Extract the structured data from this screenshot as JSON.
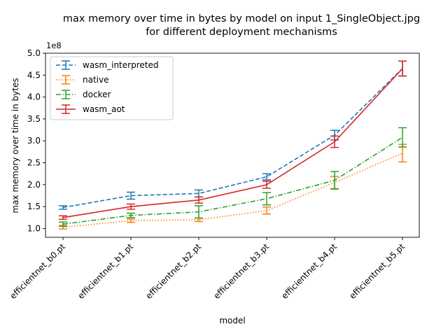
{
  "chart_data": {
    "type": "line",
    "title_line1": "max memory over time in bytes by model on input 1_SingleObject.jpg",
    "title_line2": "for different deployment mechanisms",
    "xlabel": "model",
    "ylabel": "max memory over time in bytes",
    "y_offset_label": "1e8",
    "y_scale": 100000000,
    "ylim": [
      0.8,
      5.0
    ],
    "yticks": [
      1.0,
      1.5,
      2.0,
      2.5,
      3.0,
      3.5,
      4.0,
      4.5,
      5.0
    ],
    "ytick_labels": [
      "1.0",
      "1.5",
      "2.0",
      "2.5",
      "3.0",
      "3.5",
      "4.0",
      "4.5",
      "5.0"
    ],
    "categories": [
      "efficientnet_b0.pt",
      "efficientnet_b1.pt",
      "efficientnet_b2.pt",
      "efficientnet_b3.pt",
      "efficientnet_b4.pt",
      "efficientnet_b5.pt"
    ],
    "legend_position": "upper-left",
    "grid": false,
    "series": [
      {
        "name": "wasm_interpreted",
        "color": "#1f77b4",
        "dash": "6,3",
        "values": [
          1.48,
          1.75,
          1.8,
          2.18,
          3.13,
          4.65
        ],
        "err": [
          0.04,
          0.08,
          0.08,
          0.07,
          0.11,
          0.17
        ]
      },
      {
        "name": "native",
        "color": "#ff7f0e",
        "dash": "1.5,2.5",
        "values": [
          1.03,
          1.18,
          1.2,
          1.41,
          2.05,
          2.72
        ],
        "err": [
          0.04,
          0.04,
          0.04,
          0.08,
          0.14,
          0.2
        ]
      },
      {
        "name": "docker",
        "color": "#2ca02c",
        "dash": "7,2.5,1.5,2.5",
        "values": [
          1.1,
          1.3,
          1.38,
          1.68,
          2.1,
          3.08
        ],
        "err": [
          0.05,
          0.05,
          0.14,
          0.14,
          0.2,
          0.22
        ]
      },
      {
        "name": "wasm_aot",
        "color": "#d62728",
        "dash": "",
        "values": [
          1.25,
          1.5,
          1.65,
          2.0,
          2.98,
          4.65
        ],
        "err": [
          0.04,
          0.06,
          0.07,
          0.08,
          0.13,
          0.17
        ]
      }
    ]
  }
}
